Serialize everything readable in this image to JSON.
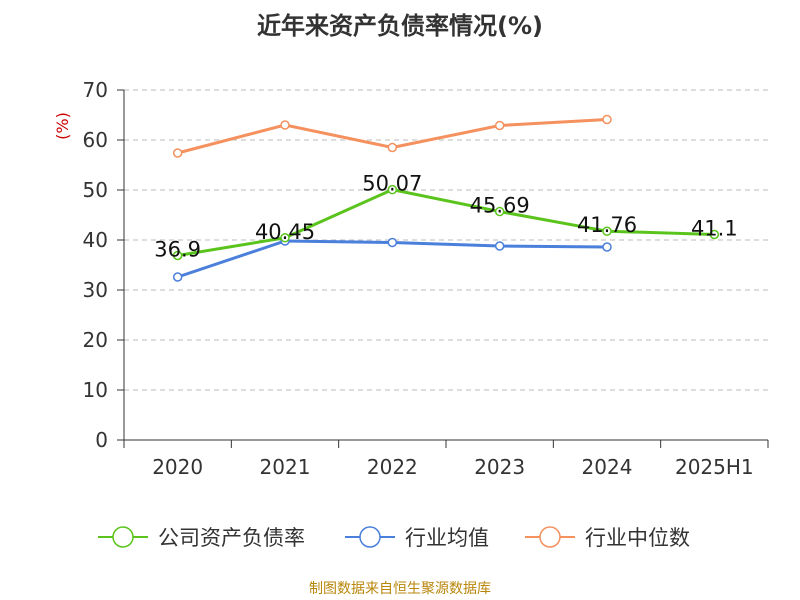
{
  "title": "近年来资产负债率情况(%)",
  "source": "制图数据来自恒生聚源数据库",
  "colors": {
    "company": "#5ac41c",
    "industry_avg": "#4a7fdb",
    "industry_median": "#f4915e",
    "unit": "#cc0000",
    "grid": "#bbbbbb",
    "axis": "#333333",
    "source": "#b8860b"
  },
  "chart_data": {
    "type": "line",
    "title": "近年来资产负债率情况(%)",
    "ylabel": "(%)",
    "xlabel": "",
    "categories": [
      "2020",
      "2021",
      "2022",
      "2023",
      "2024",
      "2025H1"
    ],
    "ylim": [
      0,
      70
    ],
    "yticks": [
      0,
      10,
      20,
      30,
      40,
      50,
      60,
      70
    ],
    "grid": "horizontal dashed",
    "legend": "bottom",
    "series": [
      {
        "name": "公司资产负债率",
        "color": "#5ac41c",
        "values": [
          36.9,
          40.45,
          50.07,
          45.69,
          41.76,
          41.1
        ],
        "labels": [
          "36.9",
          "40.45",
          "50.07",
          "45.69",
          "41.76",
          "41.1"
        ]
      },
      {
        "name": "行业均值",
        "color": "#4a7fdb",
        "values": [
          32.6,
          39.8,
          39.5,
          38.8,
          38.6,
          null
        ]
      },
      {
        "name": "行业中位数",
        "color": "#f4915e",
        "values": [
          57.4,
          63.0,
          58.5,
          62.9,
          64.1,
          null
        ]
      }
    ]
  }
}
